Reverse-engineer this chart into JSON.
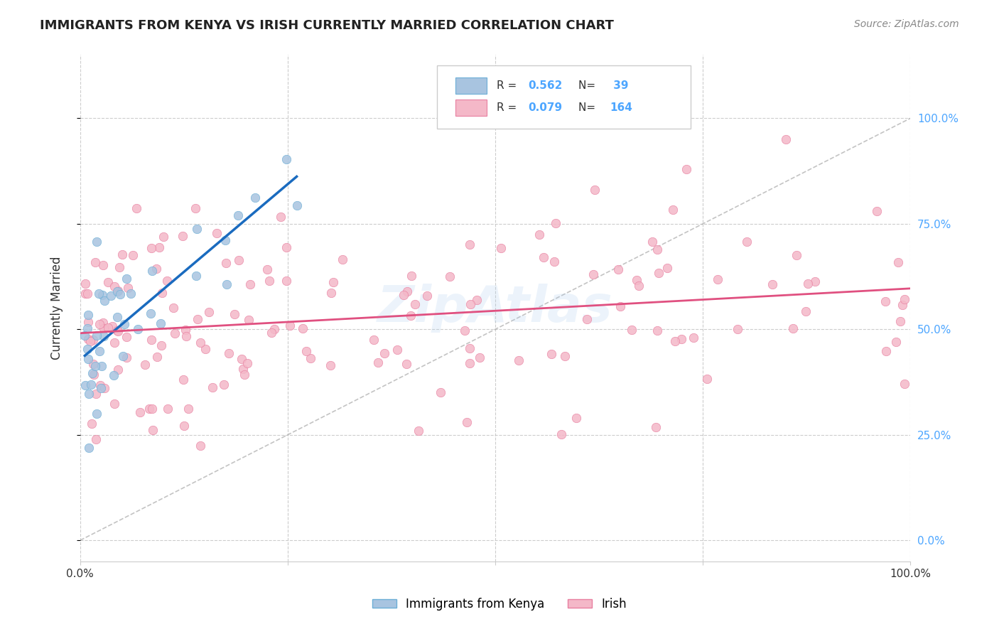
{
  "title": "IMMIGRANTS FROM KENYA VS IRISH CURRENTLY MARRIED CORRELATION CHART",
  "source": "Source: ZipAtlas.com",
  "ylabel": "Currently Married",
  "xlim": [
    0,
    1
  ],
  "ylim": [
    -0.05,
    1.15
  ],
  "ytick_values": [
    0.0,
    0.25,
    0.5,
    0.75,
    1.0
  ],
  "background_color": "#ffffff",
  "grid_color": "#cccccc",
  "watermark": "ZipAtlas",
  "kenya_color": "#a8c4e0",
  "kenya_edge_color": "#6baed6",
  "irish_color": "#f4b8c8",
  "irish_edge_color": "#e87fa0",
  "kenya_R": "0.562",
  "kenya_N": "39",
  "irish_R": "0.079",
  "irish_N": "164",
  "kenya_trend_color": "#1a6bbf",
  "irish_trend_color": "#e05080",
  "diagonal_color": "#aaaaaa",
  "right_tick_color": "#4da6ff",
  "legend_label_kenya": "Immigrants from Kenya",
  "legend_label_irish": "Irish"
}
